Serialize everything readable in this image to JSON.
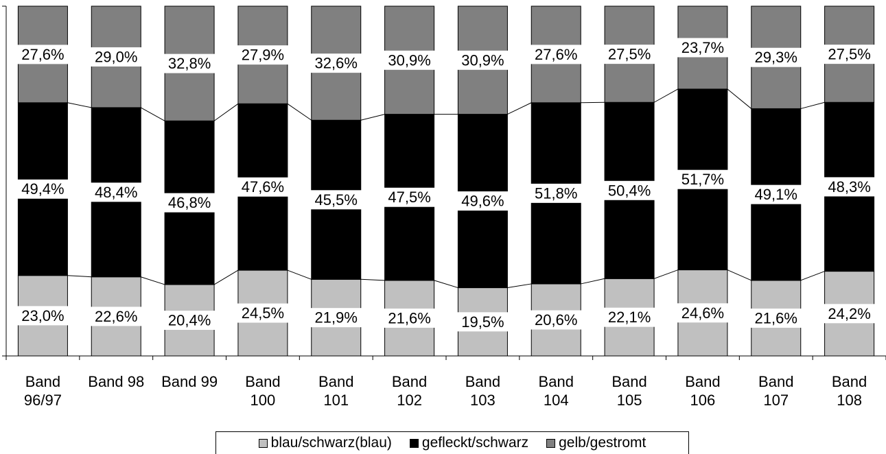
{
  "colors": {
    "blau": "#c0c0c0",
    "gefleckt": "#000000",
    "gelb": "#808080"
  },
  "chart_data": {
    "type": "bar",
    "stacked": true,
    "percent": true,
    "categories": [
      [
        "Band",
        "96/97"
      ],
      [
        "Band 98"
      ],
      [
        "Band 99"
      ],
      [
        "Band",
        "100"
      ],
      [
        "Band",
        "101"
      ],
      [
        "Band",
        "102"
      ],
      [
        "Band",
        "103"
      ],
      [
        "Band",
        "104"
      ],
      [
        "Band",
        "105"
      ],
      [
        "Band",
        "106"
      ],
      [
        "Band",
        "107"
      ],
      [
        "Band",
        "108"
      ]
    ],
    "series": [
      {
        "name": "blau/schwarz(blau)",
        "color_key": "blau",
        "values": [
          23.0,
          22.6,
          20.4,
          24.5,
          21.9,
          21.6,
          19.5,
          20.6,
          22.1,
          24.6,
          21.6,
          24.2
        ],
        "labels": [
          "23,0%",
          "22,6%",
          "20,4%",
          "24,5%",
          "21,9%",
          "21,6%",
          "19,5%",
          "20,6%",
          "22,1%",
          "24,6%",
          "21,6%",
          "24,2%"
        ]
      },
      {
        "name": "gefleckt/schwarz",
        "color_key": "gefleckt",
        "values": [
          49.4,
          48.4,
          46.8,
          47.6,
          45.5,
          47.5,
          49.6,
          51.8,
          50.4,
          51.7,
          49.1,
          48.3
        ],
        "labels": [
          "49,4%",
          "48,4%",
          "46,8%",
          "47,6%",
          "45,5%",
          "47,5%",
          "49,6%",
          "51,8%",
          "50,4%",
          "51,7%",
          "49,1%",
          "48,3%"
        ]
      },
      {
        "name": "gelb/gestromt",
        "color_key": "gelb",
        "values": [
          27.6,
          29.0,
          32.8,
          27.9,
          32.6,
          30.9,
          30.9,
          27.6,
          27.5,
          23.7,
          29.3,
          27.5
        ],
        "labels": [
          "27,6%",
          "29,0%",
          "32,8%",
          "27,9%",
          "32,6%",
          "30,9%",
          "30,9%",
          "27,6%",
          "27,5%",
          "23,7%",
          "29,3%",
          "27,5%"
        ]
      }
    ],
    "ylim": [
      0,
      100
    ],
    "series_lines": true,
    "legend_position": "bottom"
  }
}
